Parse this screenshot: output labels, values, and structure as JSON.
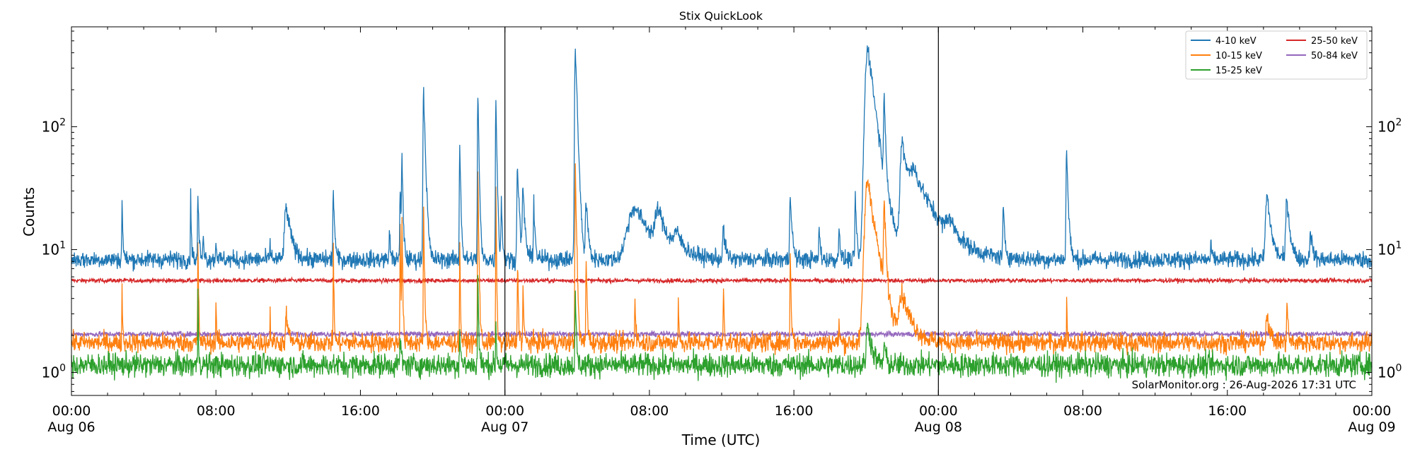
{
  "chart_data": {
    "type": "line",
    "title": "Stix QuickLook",
    "xlabel": "Time (UTC)",
    "ylabel": "Counts",
    "yscale": "log",
    "ylim": [
      0.65,
      650
    ],
    "xlim_hours": [
      0,
      72
    ],
    "grid": false,
    "day_separators_hours": [
      24,
      48
    ],
    "x_ticks": [
      {
        "h": 0,
        "l1": "00:00",
        "l2": "Aug 06"
      },
      {
        "h": 8,
        "l1": "08:00",
        "l2": ""
      },
      {
        "h": 16,
        "l1": "16:00",
        "l2": ""
      },
      {
        "h": 24,
        "l1": "00:00",
        "l2": "Aug 07"
      },
      {
        "h": 32,
        "l1": "08:00",
        "l2": ""
      },
      {
        "h": 40,
        "l1": "16:00",
        "l2": ""
      },
      {
        "h": 48,
        "l1": "00:00",
        "l2": "Aug 08"
      },
      {
        "h": 56,
        "l1": "08:00",
        "l2": ""
      },
      {
        "h": 64,
        "l1": "16:00",
        "l2": ""
      },
      {
        "h": 72,
        "l1": "00:00",
        "l2": "Aug 09"
      }
    ],
    "y_ticks": [
      1,
      10,
      100
    ],
    "legend_position": "top-right",
    "annotation": "SolarMonitor.org : 26-Aug-2026 17:31 UTC",
    "series": [
      {
        "name": "4-10 keV",
        "color": "#1f77b4",
        "base": 8.3,
        "noise": 0.08,
        "peaks": [
          [
            2.8,
            26,
            0.04
          ],
          [
            6.6,
            26,
            0.04
          ],
          [
            7.0,
            28,
            0.05
          ],
          [
            7.3,
            14,
            0.05
          ],
          [
            8.0,
            12,
            0.05
          ],
          [
            11.0,
            11,
            0.05
          ],
          [
            11.9,
            22,
            0.25
          ],
          [
            14.5,
            31,
            0.06
          ],
          [
            17.6,
            15,
            0.05
          ],
          [
            18.2,
            30,
            0.06
          ],
          [
            18.3,
            55,
            0.05
          ],
          [
            19.5,
            200,
            0.08
          ],
          [
            21.5,
            75,
            0.05
          ],
          [
            22.5,
            200,
            0.05
          ],
          [
            23.5,
            180,
            0.05
          ],
          [
            23.8,
            27,
            0.05
          ],
          [
            24.7,
            50,
            0.08
          ],
          [
            25.0,
            30,
            0.1
          ],
          [
            25.6,
            26,
            0.06
          ],
          [
            27.9,
            440,
            0.09
          ],
          [
            28.5,
            25,
            0.1
          ],
          [
            31.2,
            22,
            1.0
          ],
          [
            32.5,
            18,
            0.4
          ],
          [
            33.5,
            12,
            0.4
          ],
          [
            36.1,
            15,
            0.1
          ],
          [
            39.8,
            31,
            0.08
          ],
          [
            41.4,
            15,
            0.06
          ],
          [
            42.5,
            18,
            0.05
          ],
          [
            43.4,
            28,
            0.06
          ],
          [
            44.1,
            450,
            0.35
          ],
          [
            45.0,
            160,
            0.07
          ],
          [
            46.0,
            70,
            0.25
          ],
          [
            46.7,
            40,
            1.1
          ],
          [
            48.6,
            13,
            0.4
          ],
          [
            51.6,
            20,
            0.08
          ],
          [
            55.1,
            62,
            0.08
          ],
          [
            63.1,
            11,
            0.05
          ],
          [
            66.2,
            28,
            0.2
          ],
          [
            67.3,
            27,
            0.15
          ],
          [
            68.6,
            15,
            0.1
          ]
        ]
      },
      {
        "name": "10-15 keV",
        "color": "#ff7f0e",
        "base": 1.75,
        "noise": 0.09,
        "peaks": [
          [
            2.8,
            5,
            0.03
          ],
          [
            7.0,
            12,
            0.03
          ],
          [
            8.0,
            4,
            0.03
          ],
          [
            11.0,
            3,
            0.03
          ],
          [
            11.9,
            3,
            0.1
          ],
          [
            14.5,
            10,
            0.03
          ],
          [
            18.2,
            18,
            0.03
          ],
          [
            18.3,
            18,
            0.03
          ],
          [
            19.5,
            20,
            0.04
          ],
          [
            21.5,
            10,
            0.03
          ],
          [
            22.5,
            43,
            0.04
          ],
          [
            23.5,
            26,
            0.03
          ],
          [
            24.7,
            8,
            0.04
          ],
          [
            25.0,
            5,
            0.04
          ],
          [
            27.9,
            50,
            0.05
          ],
          [
            28.5,
            8,
            0.05
          ],
          [
            31.2,
            4,
            0.05
          ],
          [
            33.6,
            4,
            0.03
          ],
          [
            36.1,
            5,
            0.04
          ],
          [
            39.8,
            10,
            0.04
          ],
          [
            42.5,
            3,
            0.03
          ],
          [
            44.1,
            37,
            0.4
          ],
          [
            45.0,
            22,
            0.08
          ],
          [
            46.0,
            4,
            0.5
          ],
          [
            55.1,
            4,
            0.03
          ],
          [
            66.2,
            3,
            0.15
          ],
          [
            67.3,
            4,
            0.05
          ]
        ]
      },
      {
        "name": "15-25 keV",
        "color": "#2ca02c",
        "base": 1.15,
        "noise": 0.11,
        "peaks": [
          [
            7.0,
            4,
            0.03
          ],
          [
            18.2,
            2,
            0.05
          ],
          [
            21.5,
            2.2,
            0.05
          ],
          [
            22.5,
            6,
            0.04
          ],
          [
            23.5,
            2.5,
            0.04
          ],
          [
            27.9,
            4,
            0.05
          ],
          [
            44.1,
            2.5,
            0.2
          ],
          [
            45.0,
            1.8,
            0.08
          ]
        ]
      },
      {
        "name": "25-50 keV",
        "color": "#d62728",
        "base": 5.6,
        "noise": 0.02,
        "peaks": []
      },
      {
        "name": "50-84 keV",
        "color": "#9467bd",
        "base": 2.05,
        "noise": 0.025,
        "peaks": []
      }
    ]
  }
}
